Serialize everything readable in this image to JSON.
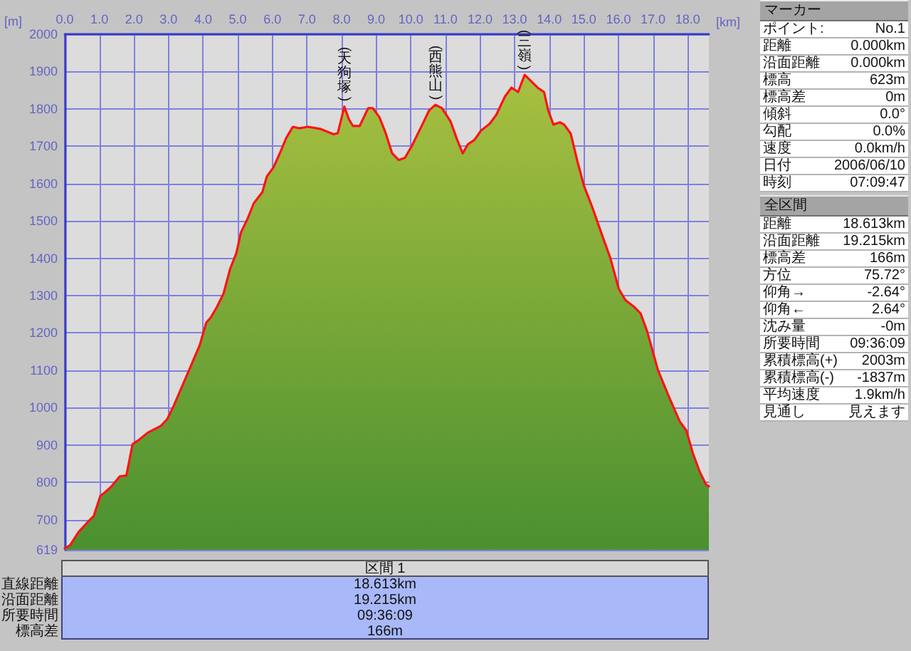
{
  "chart_data": [
    {
      "type": "area",
      "xlabel": "[km]",
      "ylabel": "[m]",
      "x": [
        0,
        0.15,
        0.4,
        0.65,
        0.84,
        1.03,
        1.15,
        1.34,
        1.59,
        1.78,
        1.96,
        2.15,
        2.4,
        2.78,
        2.96,
        3.15,
        3.4,
        3.65,
        3.9,
        4.09,
        4.21,
        4.4,
        4.59,
        4.78,
        4.96,
        5.09,
        5.28,
        5.46,
        5.71,
        5.84,
        6.03,
        6.21,
        6.4,
        6.59,
        6.78,
        7.03,
        7.4,
        7.77,
        7.89,
        8.08,
        8.21,
        8.33,
        8.52,
        8.77,
        8.9,
        9.09,
        9.27,
        9.46,
        9.65,
        9.83,
        10.02,
        10.28,
        10.53,
        10.71,
        10.9,
        11.15,
        11.34,
        11.5,
        11.65,
        11.84,
        12.03,
        12.28,
        12.47,
        12.72,
        12.91,
        13.1,
        13.29,
        13.47,
        13.66,
        13.85,
        13.97,
        14.12,
        14.31,
        14.43,
        14.62,
        14.81,
        15.0,
        15.25,
        15.5,
        15.76,
        16.01,
        16.2,
        16.45,
        16.64,
        16.83,
        17.14,
        17.46,
        17.77,
        17.96,
        18.15,
        18.34,
        18.53,
        18.613
      ],
      "series": [
        {
          "color": "#ff1414",
          "values": [
            623,
            631,
            667,
            692,
            710,
            764,
            772,
            788,
            816,
            818,
            902,
            914,
            933,
            951,
            969,
            1005,
            1059,
            1113,
            1167,
            1228,
            1240,
            1270,
            1306,
            1372,
            1414,
            1469,
            1505,
            1547,
            1577,
            1619,
            1643,
            1680,
            1722,
            1752,
            1748,
            1752,
            1746,
            1732,
            1735,
            1806,
            1772,
            1754,
            1754,
            1802,
            1802,
            1778,
            1736,
            1681,
            1663,
            1669,
            1699,
            1748,
            1796,
            1811,
            1802,
            1766,
            1717,
            1681,
            1705,
            1717,
            1742,
            1760,
            1784,
            1833,
            1857,
            1845,
            1891,
            1875,
            1857,
            1845,
            1796,
            1758,
            1764,
            1758,
            1734,
            1661,
            1595,
            1535,
            1469,
            1402,
            1318,
            1288,
            1270,
            1252,
            1204,
            1101,
            1029,
            963,
            939,
            878,
            830,
            794,
            789
          ]
        }
      ],
      "xlim": [
        0,
        18.613
      ],
      "xticks": [
        {
          "value": 0,
          "label": "0.0"
        },
        {
          "value": 1,
          "label": "1.0"
        },
        {
          "value": 2,
          "label": "2.0"
        },
        {
          "value": 3,
          "label": "3.0"
        },
        {
          "value": 4,
          "label": "4.0"
        },
        {
          "value": 5,
          "label": "5.0"
        },
        {
          "value": 6,
          "label": "6.0"
        },
        {
          "value": 7,
          "label": "7.0"
        },
        {
          "value": 8,
          "label": "8.0"
        },
        {
          "value": 9,
          "label": "9.0"
        },
        {
          "value": 10,
          "label": "10.0"
        },
        {
          "value": 11,
          "label": "11.0"
        },
        {
          "value": 12,
          "label": "12.0"
        },
        {
          "value": 13,
          "label": "13.0"
        },
        {
          "value": 14,
          "label": "14.0"
        },
        {
          "value": 15,
          "label": "15.0"
        },
        {
          "value": 16,
          "label": "16.0"
        },
        {
          "value": 17,
          "label": "17.0"
        },
        {
          "value": 18,
          "label": "18.0"
        }
      ],
      "ylim": [
        619,
        2000
      ],
      "yticks": [
        619,
        700,
        800,
        900,
        1000,
        1100,
        1200,
        1300,
        1400,
        1500,
        1600,
        1700,
        1800,
        1900,
        2000
      ],
      "grid": true,
      "annotations": [
        {
          "text": "(天狗塚)",
          "x": 8.08,
          "y": 1806
        },
        {
          "text": "(西熊山)",
          "x": 10.71,
          "y": 1811
        },
        {
          "text": "(三嶺)",
          "x": 13.29,
          "y": 1891
        }
      ]
    },
    {
      "type": "other",
      "title": "マーカー",
      "annotations": [
        "ポイント:",
        "No.1",
        "距離",
        "0.000km",
        "沿面距離",
        "0.000km",
        "標高",
        "623m",
        "標高差",
        "0m",
        "傾斜",
        "0.0°",
        "勾配",
        "0.0%",
        "速度",
        "0.0km/h",
        "日付",
        "2006/06/10",
        "時刻",
        "07:09:47"
      ]
    },
    {
      "type": "other",
      "title": "全区間",
      "annotations": [
        "距離",
        "18.613km",
        "沿面距離",
        "19.215km",
        "標高差",
        "166m",
        "方位",
        "75.72°",
        "仰角→",
        "-2.64°",
        "仰角←",
        "2.64°",
        "沈み量",
        "-0m",
        "所要時間",
        "09:36:09",
        "累積標高(+)",
        "2003m",
        "累積標高(-)",
        "-1837m",
        "平均速度",
        "1.9km/h",
        "見通し",
        "見えます"
      ]
    },
    {
      "type": "other",
      "title": "区間 1",
      "annotations": [
        "直線距離",
        "18.613km",
        "沿面距離",
        "19.215km",
        "所要時間",
        "09:36:09",
        "標高差",
        "166m"
      ]
    }
  ]
}
